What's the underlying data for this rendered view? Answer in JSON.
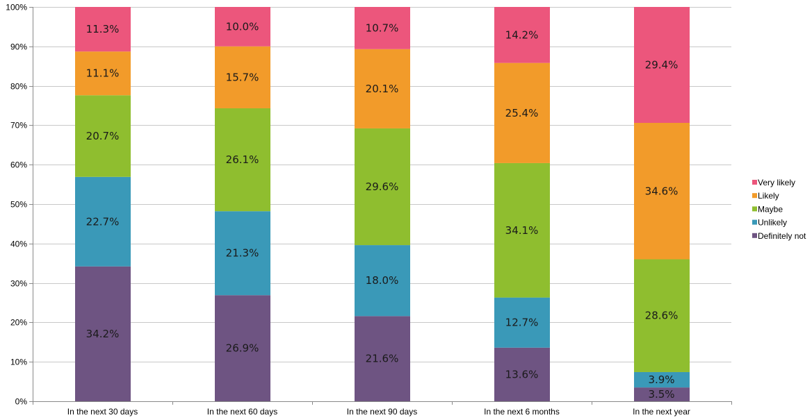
{
  "chart_data": {
    "type": "bar",
    "stacked": true,
    "percent": true,
    "categories": [
      "In the next 30 days",
      "In the next 60 days",
      "In the next 90 days",
      "In the next 6 months",
      "In the next year"
    ],
    "series": [
      {
        "name": "Definitely not",
        "color": "#6e5482",
        "values": [
          34.2,
          26.9,
          21.6,
          13.6,
          3.5
        ],
        "labels": [
          "34.2%",
          "26.9%",
          "21.6%",
          "13.6%",
          "3.5%"
        ]
      },
      {
        "name": "Unlikely",
        "color": "#3a99b8",
        "values": [
          22.7,
          21.3,
          18.0,
          12.7,
          3.9
        ],
        "labels": [
          "22.7%",
          "21.3%",
          "18.0%",
          "12.7%",
          "3.9%"
        ]
      },
      {
        "name": "Maybe",
        "color": "#8fbe2f",
        "values": [
          20.7,
          26.1,
          29.6,
          34.1,
          28.6
        ],
        "labels": [
          "20.7%",
          "26.1%",
          "29.6%",
          "34.1%",
          "28.6%"
        ]
      },
      {
        "name": "Likely",
        "color": "#f29b2a",
        "values": [
          11.1,
          15.7,
          20.1,
          25.4,
          34.6
        ],
        "labels": [
          "11.1%",
          "15.7%",
          "20.1%",
          "25.4%",
          "34.6%"
        ]
      },
      {
        "name": "Very likely",
        "color": "#ec567c",
        "values": [
          11.3,
          10.0,
          10.7,
          14.2,
          29.4
        ],
        "labels": [
          "11.3%",
          "10.0%",
          "10.7%",
          "14.2%",
          "29.4%"
        ]
      }
    ],
    "yticks": [
      "0%",
      "10%",
      "20%",
      "30%",
      "40%",
      "50%",
      "60%",
      "70%",
      "80%",
      "90%",
      "100%"
    ],
    "ylim": [
      0,
      100
    ],
    "grid": true,
    "legend": {
      "position": "right",
      "order": [
        "Very likely",
        "Likely",
        "Maybe",
        "Unlikely",
        "Definitely not"
      ]
    },
    "colors": {
      "grid": "#c8c8c8",
      "axis": "#888888"
    }
  }
}
